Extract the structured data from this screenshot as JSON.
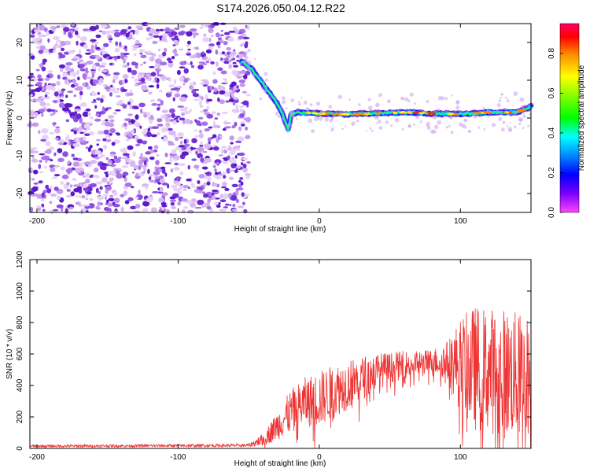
{
  "figure_title": "S174.2026.050.04.12.R22",
  "chart_data": [
    {
      "type": "heatmap",
      "name": "spectrogram",
      "xlabel": "Height of straight line (km)",
      "ylabel": "Frequency (Hz)",
      "xlim": [
        -205,
        150
      ],
      "ylim": [
        -25,
        25
      ],
      "xticks": [
        -200,
        -100,
        0,
        100
      ],
      "yticks": [
        -20,
        -10,
        0,
        10,
        20
      ],
      "track": {
        "description_x": [
          -55,
          -48,
          -42,
          -36,
          -30,
          -26,
          -22,
          -20,
          -15,
          0,
          20,
          40,
          60,
          80,
          100,
          120,
          140,
          150
        ],
        "frequency_y": [
          15,
          13,
          10,
          7,
          4,
          1,
          -3,
          1,
          1.5,
          1.2,
          1.0,
          1.2,
          1.5,
          1.2,
          1.0,
          1.5,
          1.5,
          3
        ]
      },
      "noise_region_x": [
        -205,
        -50
      ],
      "colorbar": {
        "label": "Normalized spectral amplitude",
        "range": [
          0,
          0.95
        ],
        "ticks": [
          0.0,
          0.2,
          0.4,
          0.6,
          0.8
        ]
      }
    },
    {
      "type": "line",
      "name": "snr",
      "xlabel": "Height of straight line (km)",
      "ylabel": "SNR (10 * v/v)",
      "xlim": [
        -205,
        150
      ],
      "ylim": [
        0,
        1200
      ],
      "xticks": [
        -200,
        -100,
        0,
        100
      ],
      "yticks": [
        0,
        200,
        400,
        600,
        800,
        1000,
        1200
      ],
      "series_color": "#ee3333",
      "envelope": {
        "x": [
          -205,
          -50,
          -40,
          -30,
          -20,
          -10,
          0,
          10,
          20,
          30,
          40,
          50,
          60,
          70,
          80,
          90,
          100,
          110,
          120,
          130,
          140,
          150
        ],
        "mean": [
          15,
          20,
          60,
          150,
          250,
          310,
          330,
          380,
          420,
          460,
          500,
          520,
          540,
          550,
          560,
          570,
          560,
          550,
          540,
          520,
          510,
          500
        ],
        "spread": [
          8,
          10,
          40,
          90,
          140,
          160,
          180,
          170,
          160,
          140,
          120,
          100,
          90,
          80,
          80,
          120,
          300,
          400,
          400,
          420,
          400,
          380
        ]
      }
    }
  ]
}
